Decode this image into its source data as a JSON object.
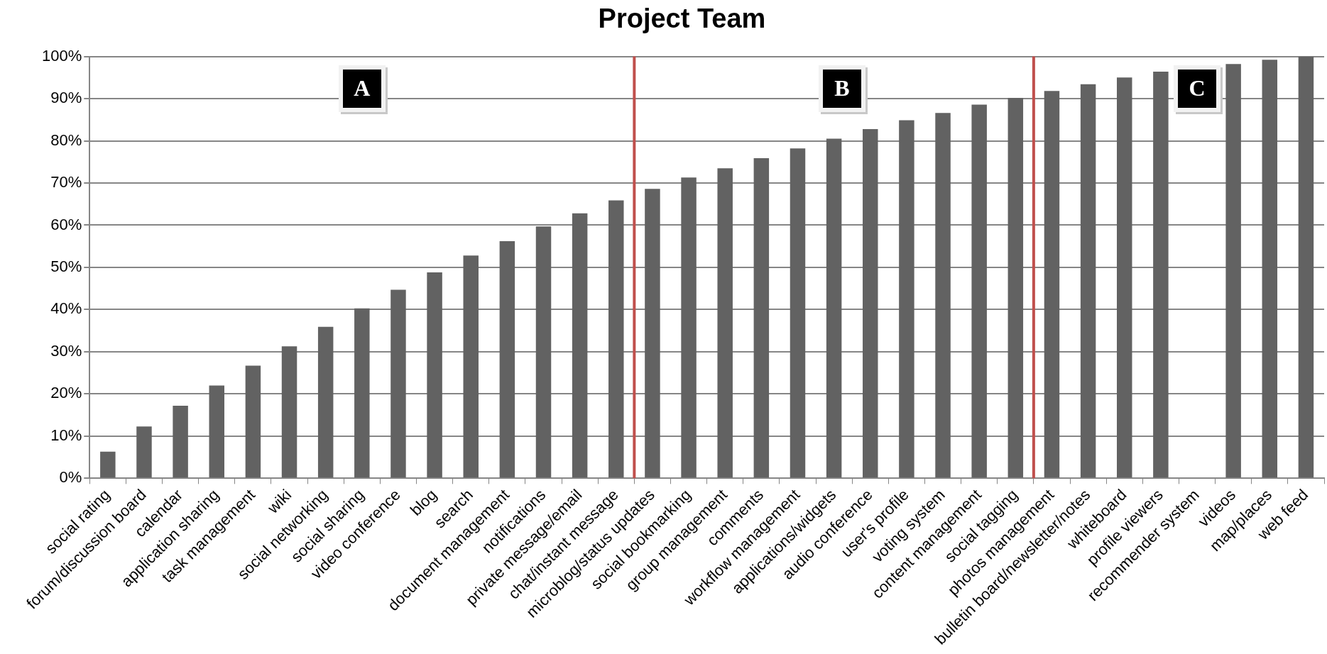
{
  "chart_data": {
    "type": "bar",
    "title": "Project Team",
    "categories": [
      "social rating",
      "forum/discussion board",
      "calendar",
      "application sharing",
      "task management",
      "wiki",
      "social networking",
      "social sharing",
      "video conference",
      "blog",
      "search",
      "document management",
      "notifications",
      "private message/email",
      "chat/instant message",
      "microblog/status updates",
      "social bookmarking",
      "group management",
      "comments",
      "workflow management",
      "applications/widgets",
      "audio conference",
      "user's profile",
      "voting system",
      "content management",
      "social tagging",
      "photos management",
      "bulletin board/newsletter/notes",
      "whiteboard",
      "profile viewers",
      "recommender system",
      "videos",
      "map/places",
      "web feed"
    ],
    "values": [
      6.3,
      12.3,
      17.2,
      22,
      26.7,
      31.3,
      35.9,
      40.3,
      44.7,
      48.8,
      52.8,
      56.2,
      59.7,
      62.8,
      65.9,
      68.6,
      71.3,
      73.5,
      75.9,
      78.2,
      80.5,
      82.8,
      84.9,
      86.6,
      88.6,
      90.2,
      91.8,
      93.4,
      95,
      96.4,
      null,
      98.2,
      99.2,
      100
    ],
    "color": "#626262",
    "ylim": [
      0,
      100
    ],
    "yticks": [
      {
        "value": 0,
        "label": "0%"
      },
      {
        "value": 10,
        "label": "10%"
      },
      {
        "value": 20,
        "label": "20%"
      },
      {
        "value": 30,
        "label": "30%"
      },
      {
        "value": 40,
        "label": "40%"
      },
      {
        "value": 50,
        "label": "50%"
      },
      {
        "value": 60,
        "label": "60%"
      },
      {
        "value": 70,
        "label": "70%"
      },
      {
        "value": 80,
        "label": "80%"
      },
      {
        "value": 90,
        "label": "90%"
      },
      {
        "value": 100,
        "label": "100%"
      }
    ],
    "grid": "y",
    "annotations": [
      "A",
      "B",
      "C"
    ]
  }
}
